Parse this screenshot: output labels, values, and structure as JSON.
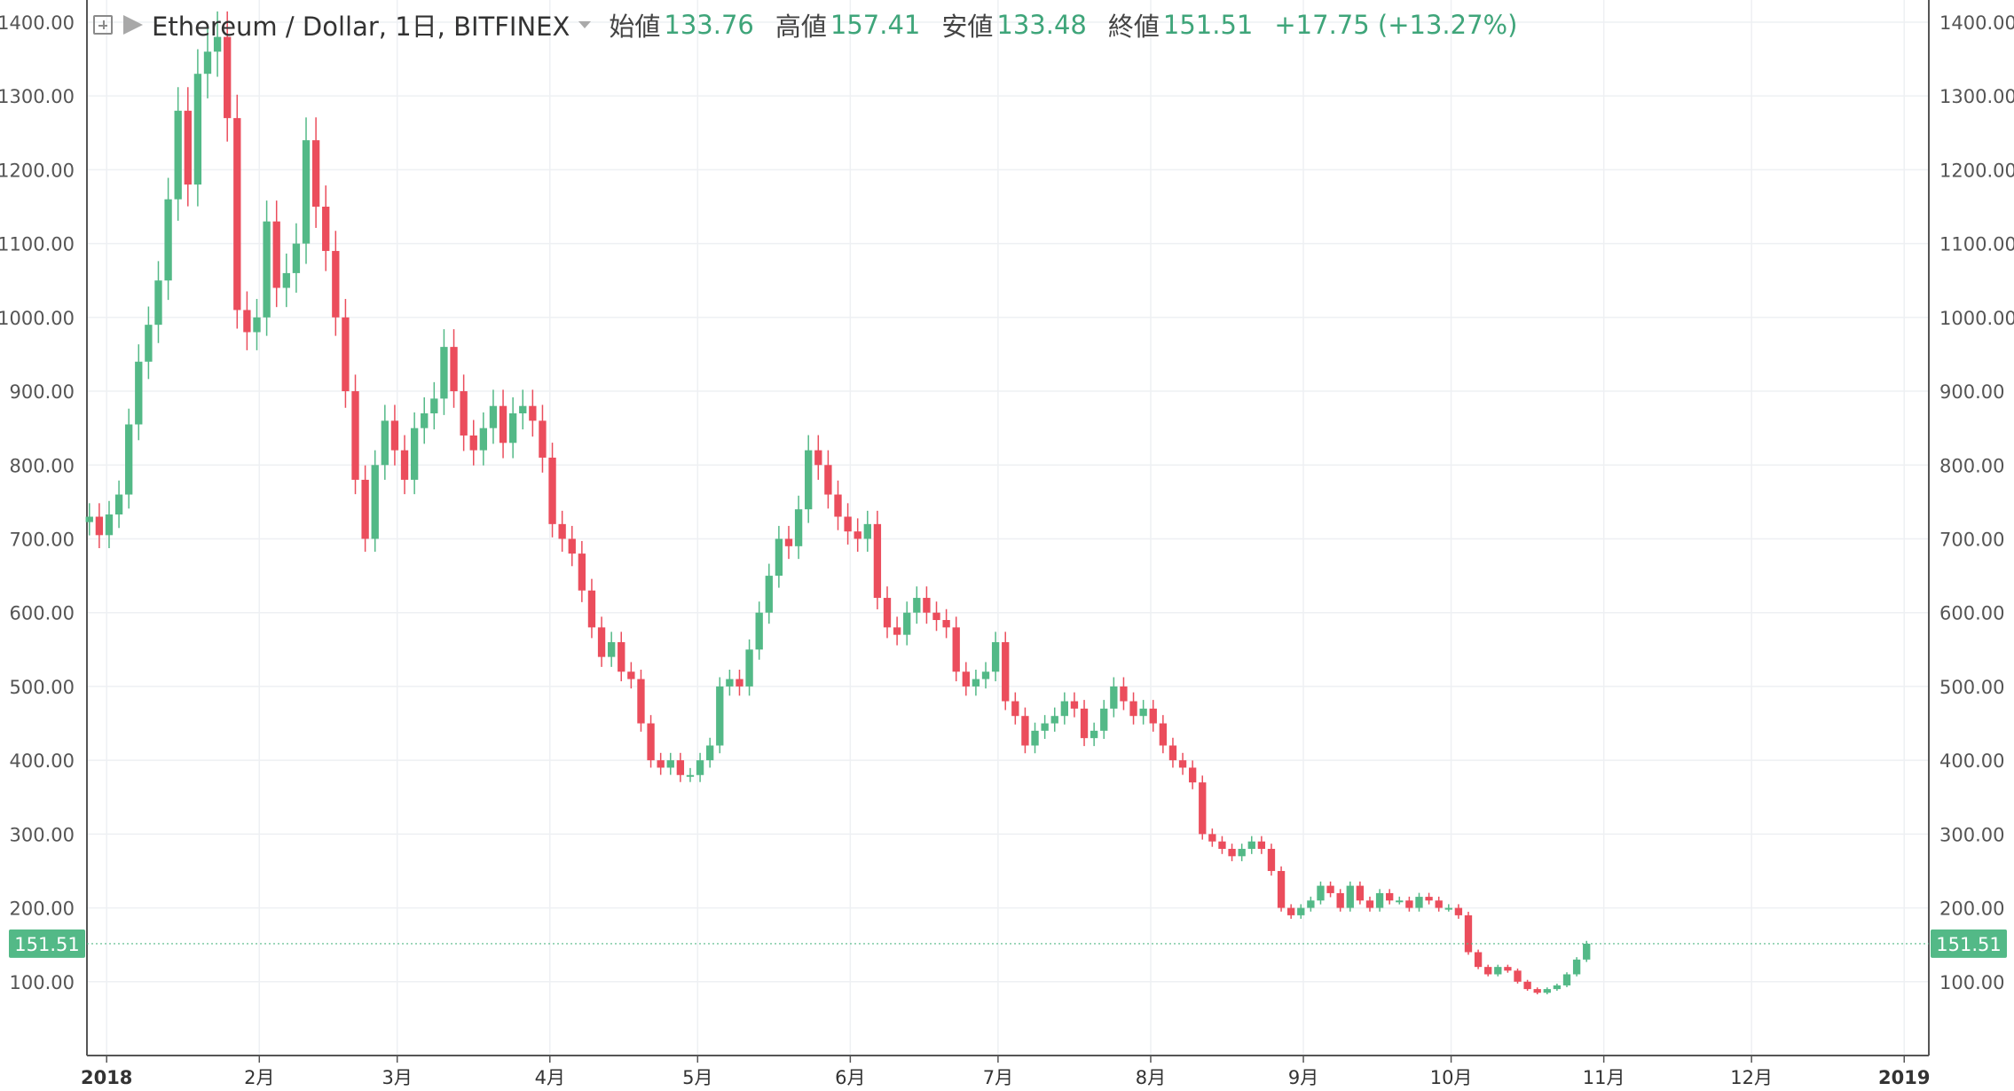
{
  "legend": {
    "symbol": "Ethereum / Dollar, 1日, BITFINEX",
    "open_label": "始値",
    "open": "133.76",
    "high_label": "高値",
    "high": "157.41",
    "low_label": "安値",
    "low": "133.48",
    "close_label": "終値",
    "close": "151.51",
    "change": "+17.75 (+13.27%)",
    "plus_icon": "plus-square-icon",
    "flag_icon": "flag-icon",
    "caret_icon": "chevron-down-icon"
  },
  "chart_data": {
    "type": "candlestick",
    "ylim": [
      0,
      1430
    ],
    "y_ticks": [
      "100.00",
      "200.00",
      "300.00",
      "400.00",
      "500.00",
      "600.00",
      "700.00",
      "800.00",
      "900.00",
      "1000.00",
      "1100.00",
      "1200.00",
      "1300.00",
      "1400.00"
    ],
    "x_range": [
      "2017-12-28",
      "2019-01-06"
    ],
    "x_ticks": [
      {
        "date": "2018-01-01",
        "label": "2018",
        "bold": true
      },
      {
        "date": "2018-02-01",
        "label": "2月"
      },
      {
        "date": "2018-03-01",
        "label": "3月"
      },
      {
        "date": "2018-04-01",
        "label": "4月"
      },
      {
        "date": "2018-05-01",
        "label": "5月"
      },
      {
        "date": "2018-06-01",
        "label": "6月"
      },
      {
        "date": "2018-07-01",
        "label": "7月"
      },
      {
        "date": "2018-08-01",
        "label": "8月"
      },
      {
        "date": "2018-09-01",
        "label": "9月"
      },
      {
        "date": "2018-10-01",
        "label": "10月"
      },
      {
        "date": "2018-11-01",
        "label": "11月"
      },
      {
        "date": "2018-12-01",
        "label": "12月"
      },
      {
        "date": "2019-01-01",
        "label": "2019",
        "bold": true
      }
    ],
    "last_price": 151.51,
    "last_price_label": "151.51",
    "start_date": "2017-12-28",
    "colors": {
      "up": "#53b987",
      "down": "#eb4d5c",
      "grid": "#eef0f3",
      "axis": "#555555",
      "price_line": "#53b987"
    },
    "closes": [
      730,
      705,
      733,
      760,
      855,
      940,
      990,
      1050,
      1160,
      1280,
      1180,
      1330,
      1360,
      1380,
      1270,
      1010,
      980,
      1000,
      1130,
      1040,
      1060,
      1100,
      1240,
      1150,
      1090,
      1000,
      900,
      780,
      700,
      800,
      860,
      820,
      780,
      850,
      870,
      890,
      960,
      900,
      840,
      820,
      850,
      880,
      830,
      870,
      880,
      860,
      810,
      720,
      700,
      680,
      630,
      580,
      540,
      560,
      520,
      510,
      450,
      400,
      390,
      400,
      380,
      380,
      400,
      420,
      500,
      510,
      500,
      550,
      600,
      650,
      700,
      690,
      740,
      820,
      800,
      760,
      730,
      710,
      700,
      720,
      620,
      580,
      570,
      600,
      620,
      600,
      590,
      580,
      520,
      500,
      510,
      520,
      560,
      480,
      460,
      420,
      440,
      450,
      460,
      480,
      470,
      430,
      440,
      470,
      500,
      480,
      460,
      470,
      450,
      420,
      400,
      390,
      370,
      300,
      290,
      280,
      270,
      280,
      290,
      280,
      250,
      200,
      190,
      200,
      210,
      230,
      220,
      200,
      230,
      210,
      200,
      220,
      210,
      210,
      200,
      215,
      210,
      200,
      200,
      190,
      140,
      120,
      110,
      120,
      115,
      100,
      90,
      85,
      90,
      95,
      110,
      130,
      151.51
    ]
  }
}
